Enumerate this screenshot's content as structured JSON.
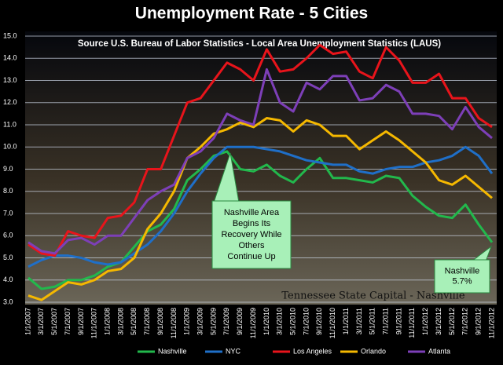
{
  "chart_data": {
    "type": "line",
    "title": "Unemployment  Rate - 5  Cities",
    "subtitle": "Source U.S. Bureau of Labor Statistics - Local Area Unemployment Statistics (LAUS)",
    "annotations": [
      "Tennessee State Capital - Nashville",
      "Nashville Area Begins Its Recovery While Others Continue Up",
      "Nashville 5.7%"
    ],
    "categories": [
      "1/1/2007",
      "3/1/2007",
      "5/1/2007",
      "7/1/2007",
      "9/1/2007",
      "11/1/2007",
      "1/1/2008",
      "3/1/2008",
      "5/1/2008",
      "7/1/2008",
      "9/1/2008",
      "11/1/2008",
      "1/1/2009",
      "3/1/2009",
      "5/1/2009",
      "7/1/2009",
      "9/1/2009",
      "11/1/2009",
      "1/1/2010",
      "3/1/2010",
      "5/1/2010",
      "7/1/2010",
      "9/1/2010",
      "11/1/2010",
      "1/1/2011",
      "3/1/2011",
      "5/1/2011",
      "7/1/2011",
      "9/1/2011",
      "11/1/2011",
      "1/1/2012",
      "3/1/2012",
      "5/1/2012",
      "7/1/2012",
      "9/1/2012",
      "11/1/2012"
    ],
    "series": [
      {
        "name": "Nashville",
        "color": "#22b84c",
        "values": [
          4.1,
          3.6,
          3.7,
          4.0,
          4.0,
          4.2,
          4.6,
          4.8,
          5.5,
          6.2,
          6.5,
          7.2,
          8.5,
          9.0,
          9.6,
          9.8,
          9.0,
          8.9,
          9.2,
          8.7,
          8.4,
          9.0,
          9.5,
          8.6,
          8.6,
          8.5,
          8.4,
          8.7,
          8.6,
          7.8,
          7.3,
          6.9,
          6.8,
          7.4,
          6.5,
          5.7
        ]
      },
      {
        "name": "NYC",
        "color": "#1f6fc8",
        "values": [
          4.6,
          4.9,
          5.1,
          5.1,
          5.0,
          4.8,
          4.7,
          4.8,
          5.2,
          5.6,
          6.2,
          7.0,
          8.0,
          8.8,
          9.5,
          10.0,
          10.0,
          10.0,
          9.9,
          9.8,
          9.6,
          9.4,
          9.3,
          9.2,
          9.2,
          8.9,
          8.8,
          9.0,
          9.1,
          9.1,
          9.3,
          9.4,
          9.6,
          10.0,
          9.6,
          8.8
        ]
      },
      {
        "name": "Los Angeles",
        "color": "#e8141b",
        "values": [
          5.6,
          5.2,
          5.1,
          6.2,
          6.0,
          5.9,
          6.8,
          6.9,
          7.5,
          9.0,
          9.0,
          10.5,
          12.0,
          12.2,
          13.0,
          13.8,
          13.5,
          13.0,
          14.4,
          13.4,
          13.5,
          14.0,
          14.6,
          14.2,
          14.3,
          13.4,
          13.1,
          14.5,
          13.9,
          12.9,
          12.9,
          13.3,
          12.2,
          12.2,
          11.3,
          10.9
        ]
      },
      {
        "name": "Orlando",
        "color": "#f5b800",
        "values": [
          3.3,
          3.1,
          3.5,
          3.9,
          3.8,
          4.0,
          4.4,
          4.5,
          5.0,
          6.3,
          7.0,
          8.0,
          9.5,
          10.0,
          10.6,
          10.8,
          11.1,
          10.9,
          11.3,
          11.2,
          10.7,
          11.2,
          11.0,
          10.5,
          10.5,
          9.9,
          10.3,
          10.7,
          10.3,
          9.8,
          9.3,
          8.5,
          8.3,
          8.7,
          8.2,
          7.7
        ]
      },
      {
        "name": "Atlanta",
        "color": "#7d3fb8",
        "values": [
          5.7,
          5.3,
          5.2,
          5.8,
          5.9,
          5.6,
          6.0,
          6.0,
          6.8,
          7.6,
          8.0,
          8.3,
          9.5,
          9.8,
          10.4,
          11.5,
          11.2,
          11.0,
          13.5,
          12.0,
          11.6,
          12.9,
          12.6,
          13.2,
          13.2,
          12.1,
          12.2,
          12.8,
          12.5,
          11.5,
          11.5,
          11.4,
          10.8,
          11.8,
          10.9,
          10.4
        ]
      }
    ],
    "ylim": [
      3,
      15
    ],
    "yticks": [
      {
        "value": 3,
        "label": "3.0"
      },
      {
        "value": 4,
        "label": "4.0"
      },
      {
        "value": 5,
        "label": "5.0"
      },
      {
        "value": 6,
        "label": "6.0"
      },
      {
        "value": 7,
        "label": "7.0"
      },
      {
        "value": 8,
        "label": "8.0"
      },
      {
        "value": 9,
        "label": "9.0"
      },
      {
        "value": 10,
        "label": "10.0"
      },
      {
        "value": 11,
        "label": "11.0"
      },
      {
        "value": 12,
        "label": "12.0"
      },
      {
        "value": 13,
        "label": "13.0"
      },
      {
        "value": 14,
        "label": "14.0"
      },
      {
        "value": 15,
        "label": "15.0"
      }
    ],
    "grid": true,
    "legend": "bottom"
  }
}
